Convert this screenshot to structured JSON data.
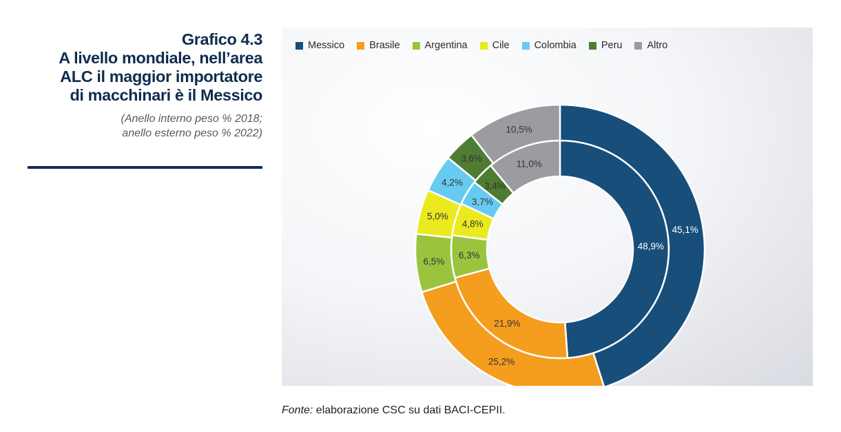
{
  "heading": {
    "number": "Grafico 4.3",
    "title": "A livello mondiale, nell’area\nALC il maggior importatore\ndi macchinari è il Messico",
    "subtitle": "(Anello interno peso % 2018;\nanello esterno peso % 2022)"
  },
  "source": {
    "label": "Fonte:",
    "text": " elaborazione CSC su dati BACI-CEPII."
  },
  "chart_data": {
    "type": "pie",
    "subtype": "donut-two-rings",
    "legend_position": "top",
    "categories": [
      "Messico",
      "Brasile",
      "Argentina",
      "Cile",
      "Colombia",
      "Peru",
      "Altro"
    ],
    "colors": [
      "#184e7a",
      "#f59d1e",
      "#9ac43e",
      "#eaea1e",
      "#67cbf1",
      "#4e7c33",
      "#9a9ca0"
    ],
    "series": [
      {
        "ring": "inner",
        "values": [
          48.9,
          21.9,
          6.3,
          4.8,
          3.7,
          3.4,
          11.0
        ],
        "labels": [
          "48,9%",
          "21,9%",
          "6,3%",
          "4,8%",
          "3,7%",
          "3,4%",
          "11,0%"
        ]
      },
      {
        "ring": "outer",
        "values": [
          45.1,
          25.2,
          6.5,
          5.0,
          4.2,
          3.6,
          10.5
        ],
        "labels": [
          "45,1%",
          "25,2%",
          "6,5%",
          "5,0%",
          "4,2%",
          "3,6%",
          "10,5%"
        ]
      }
    ]
  }
}
